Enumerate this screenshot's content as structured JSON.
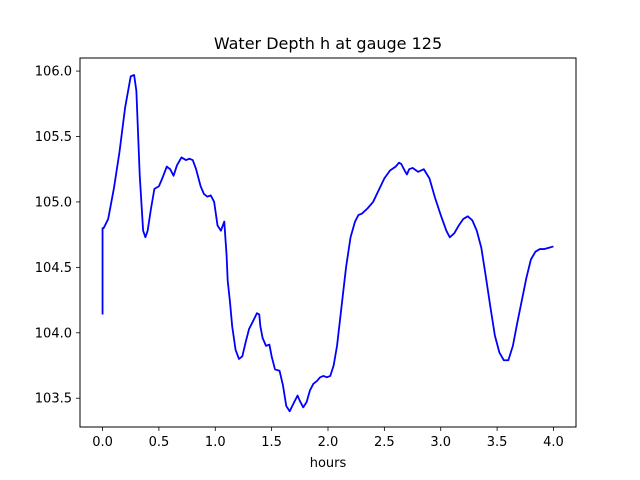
{
  "chart_data": {
    "type": "line",
    "title": "Water Depth h at gauge 125",
    "xlabel": "hours",
    "ylabel": "",
    "xlim": [
      -0.2,
      4.2
    ],
    "ylim": [
      103.28,
      106.1
    ],
    "xticks": [
      0.0,
      0.5,
      1.0,
      1.5,
      2.0,
      2.5,
      3.0,
      3.5,
      4.0
    ],
    "xtick_labels": [
      "0.0",
      "0.5",
      "1.0",
      "1.5",
      "2.0",
      "2.5",
      "3.0",
      "3.5",
      "4.0"
    ],
    "yticks": [
      103.5,
      104.0,
      104.5,
      105.0,
      105.5,
      106.0
    ],
    "ytick_labels": [
      "103.5",
      "104.0",
      "104.5",
      "105.0",
      "105.5",
      "106.0"
    ],
    "grid": false,
    "series": [
      {
        "color": "#0000ff",
        "x": [
          0.0,
          0.0,
          0.01,
          0.05,
          0.1,
          0.15,
          0.2,
          0.25,
          0.28,
          0.3,
          0.33,
          0.36,
          0.38,
          0.4,
          0.43,
          0.46,
          0.5,
          0.53,
          0.57,
          0.6,
          0.63,
          0.66,
          0.7,
          0.74,
          0.77,
          0.8,
          0.83,
          0.87,
          0.9,
          0.93,
          0.96,
          0.99,
          1.02,
          1.05,
          1.08,
          1.09,
          1.1,
          1.11,
          1.13,
          1.15,
          1.18,
          1.21,
          1.24,
          1.27,
          1.3,
          1.33,
          1.37,
          1.39,
          1.4,
          1.42,
          1.45,
          1.48,
          1.5,
          1.53,
          1.57,
          1.6,
          1.63,
          1.66,
          1.7,
          1.73,
          1.75,
          1.78,
          1.81,
          1.84,
          1.87,
          1.9,
          1.93,
          1.96,
          1.99,
          2.02,
          2.05,
          2.08,
          2.12,
          2.16,
          2.2,
          2.24,
          2.27,
          2.3,
          2.35,
          2.4,
          2.45,
          2.5,
          2.55,
          2.6,
          2.63,
          2.65,
          2.68,
          2.7,
          2.72,
          2.75,
          2.8,
          2.85,
          2.9,
          2.95,
          3.0,
          3.05,
          3.08,
          3.12,
          3.16,
          3.2,
          3.24,
          3.28,
          3.32,
          3.36,
          3.4,
          3.44,
          3.48,
          3.52,
          3.56,
          3.6,
          3.64,
          3.68,
          3.72,
          3.76,
          3.8,
          3.84,
          3.88,
          3.92,
          3.96,
          4.0
        ],
        "y": [
          104.14,
          104.8,
          104.8,
          104.87,
          105.1,
          105.38,
          105.72,
          105.96,
          105.97,
          105.85,
          105.2,
          104.78,
          104.73,
          104.78,
          104.95,
          105.1,
          105.12,
          105.18,
          105.27,
          105.25,
          105.2,
          105.28,
          105.34,
          105.32,
          105.33,
          105.32,
          105.25,
          105.12,
          105.06,
          105.04,
          105.05,
          105.0,
          104.82,
          104.78,
          104.85,
          104.72,
          104.6,
          104.4,
          104.24,
          104.05,
          103.87,
          103.8,
          103.82,
          103.93,
          104.03,
          104.08,
          104.15,
          104.14,
          104.05,
          103.96,
          103.9,
          103.91,
          103.82,
          103.72,
          103.71,
          103.6,
          103.44,
          103.4,
          103.47,
          103.52,
          103.48,
          103.43,
          103.47,
          103.56,
          103.61,
          103.63,
          103.66,
          103.67,
          103.66,
          103.67,
          103.75,
          103.9,
          104.2,
          104.5,
          104.73,
          104.85,
          104.9,
          104.91,
          104.95,
          105.0,
          105.09,
          105.18,
          105.24,
          105.27,
          105.3,
          105.29,
          105.24,
          105.21,
          105.25,
          105.26,
          105.23,
          105.25,
          105.18,
          105.03,
          104.9,
          104.78,
          104.73,
          104.76,
          104.82,
          104.87,
          104.89,
          104.86,
          104.78,
          104.65,
          104.43,
          104.2,
          103.98,
          103.85,
          103.79,
          103.79,
          103.9,
          104.08,
          104.25,
          104.42,
          104.56,
          104.62,
          104.64,
          104.64,
          104.65,
          104.66
        ]
      }
    ]
  }
}
